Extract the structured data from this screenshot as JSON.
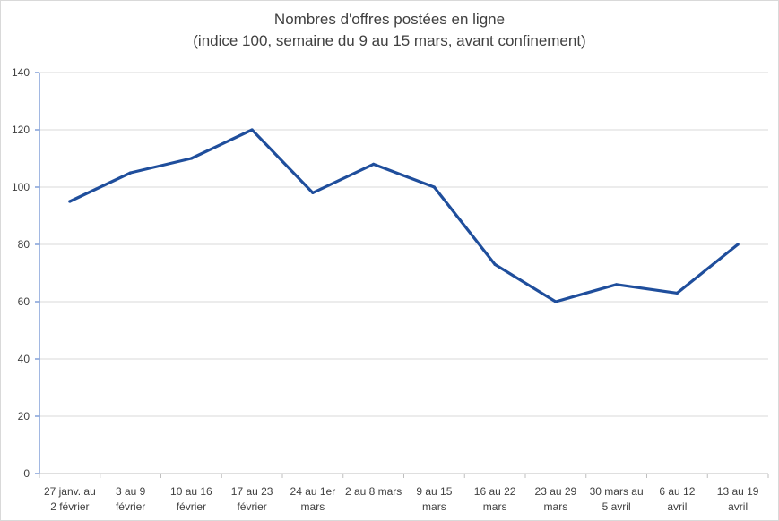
{
  "chart_data": {
    "type": "line",
    "title": "Nombres d'offres postées en ligne",
    "subtitle": "(indice 100, semaine du 9 au 15 mars, avant confinement)",
    "categories": [
      [
        "27 janv. au",
        "2 février"
      ],
      [
        "3 au 9",
        "février"
      ],
      [
        "10 au 16",
        "février"
      ],
      [
        "17 au 23",
        "février"
      ],
      [
        "24 au 1er",
        "mars"
      ],
      [
        "2 au 8 mars"
      ],
      [
        "9 au 15",
        "mars"
      ],
      [
        "16 au 22",
        "mars"
      ],
      [
        "23 au 29",
        "mars"
      ],
      [
        "30 mars au",
        "5 avril"
      ],
      [
        "6 au 12",
        "avril"
      ],
      [
        "13 au 19",
        "avril"
      ]
    ],
    "series": [
      {
        "values": [
          95,
          105,
          110,
          120,
          98,
          108,
          100,
          73,
          60,
          66,
          63,
          80
        ]
      }
    ],
    "ylim": [
      0,
      140
    ],
    "yticks": [
      0,
      20,
      40,
      60,
      80,
      100,
      120,
      140
    ],
    "grid": true,
    "line_color": "#1f4e9c",
    "grid_color": "#d9d9d9",
    "axis_color": "#4472c4"
  }
}
